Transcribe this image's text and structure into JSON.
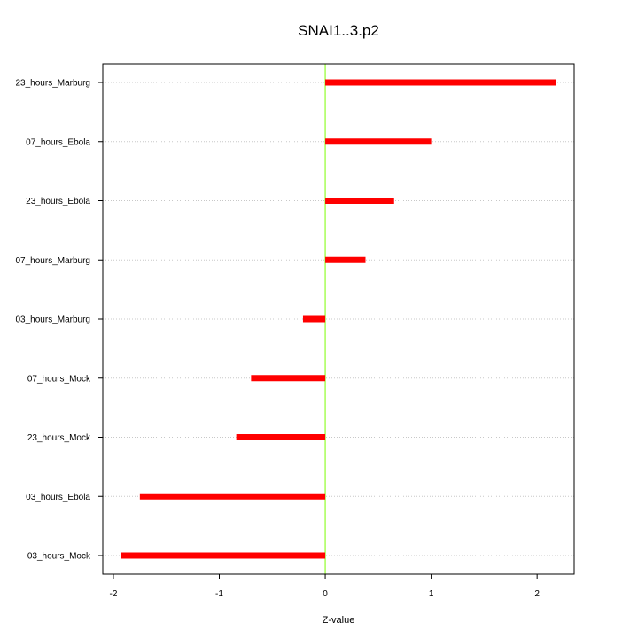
{
  "chart_data": {
    "type": "bar",
    "orientation": "horizontal",
    "title": "SNAI1..3.p2",
    "xlabel": "Z-value",
    "ylabel": "",
    "xlim": [
      -2.1,
      2.35
    ],
    "xticks": [
      -2,
      -1,
      0,
      1,
      2
    ],
    "zero_line_color": "#7CFC00",
    "bar_color": "#ff0000",
    "grid": "horizontal dotted",
    "categories": [
      "23_hours_Marburg",
      "07_hours_Ebola",
      "23_hours_Ebola",
      "07_hours_Marburg",
      "03_hours_Marburg",
      "07_hours_Mock",
      "23_hours_Mock",
      "03_hours_Ebola",
      "03_hours_Mock"
    ],
    "values": [
      2.18,
      1.0,
      0.65,
      0.38,
      -0.21,
      -0.7,
      -0.84,
      -1.75,
      -1.93
    ]
  }
}
